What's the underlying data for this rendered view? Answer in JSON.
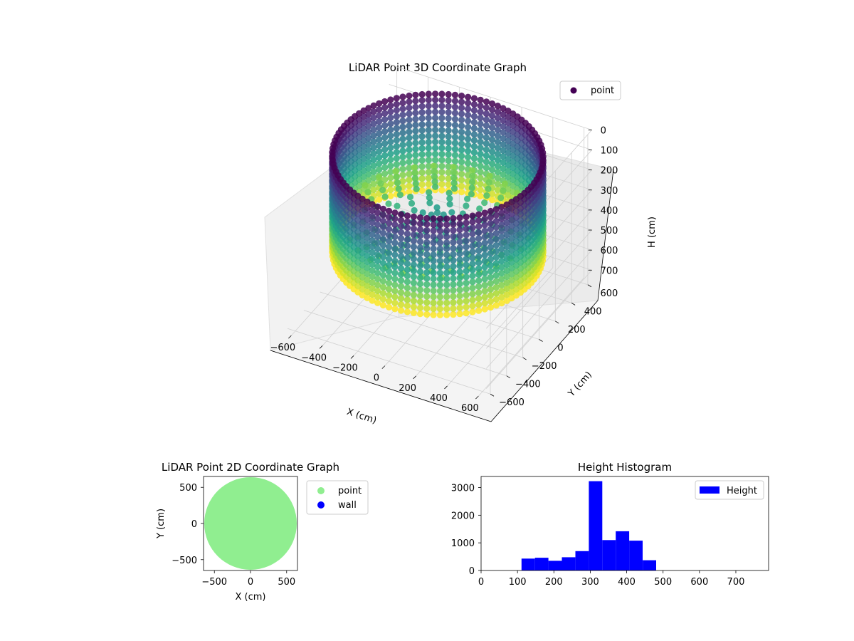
{
  "colors": {
    "wall_3d": "#440154",
    "viridis_mid": "#21918c",
    "viridis_high": "#fde725",
    "point_2d": "#90ee90",
    "wall_2d": "#0000ff",
    "histogram": "#0000ff"
  },
  "chart_data": [
    {
      "type": "scatter",
      "title": "LiDAR Point 3D Coordinate Graph",
      "xlabel": "X (cm)",
      "ylabel": "Y (cm)",
      "zlabel": "H (cm)",
      "x_ticks": [
        "−600",
        "−400",
        "−200",
        "0",
        "200",
        "400",
        "600"
      ],
      "y_ticks": [
        "−600",
        "−400",
        "−200",
        "0",
        "200",
        "400",
        "600"
      ],
      "z_ticks": [
        "0",
        "100",
        "200",
        "300",
        "400",
        "500",
        "600",
        "700"
      ],
      "xlim": [
        -650,
        650
      ],
      "ylim": [
        -650,
        650
      ],
      "zlim": [
        0,
        750
      ],
      "z_inverted": true,
      "legend": [
        "point"
      ],
      "legend_position": "upper right",
      "colormap": "viridis",
      "wall_radius": 600,
      "wall_height_range": [
        0,
        480
      ],
      "floor_height_range": [
        300,
        330
      ],
      "grid": true
    },
    {
      "type": "scatter",
      "title": "LiDAR Point 2D Coordinate Graph",
      "xlabel": "X (cm)",
      "ylabel": "Y (cm)",
      "x_ticks": [
        "−500",
        "0",
        "500"
      ],
      "y_ticks": [
        "500",
        "0",
        "−500"
      ],
      "xlim": [
        -650,
        650
      ],
      "ylim": [
        -650,
        650
      ],
      "legend": [
        "point",
        "wall"
      ],
      "legend_position": "outside right",
      "point_region_radius": 640,
      "grid": false
    },
    {
      "type": "bar",
      "title": "Height Histogram",
      "series": [
        {
          "name": "Height"
        }
      ],
      "bin_edges": [
        0,
        37,
        74,
        111,
        148,
        185,
        222,
        259,
        296,
        333,
        370,
        407,
        444,
        481,
        518,
        555,
        592,
        629,
        666,
        703,
        740,
        777
      ],
      "counts": [
        0,
        0,
        0,
        430,
        460,
        350,
        480,
        700,
        3230,
        1100,
        1420,
        1080,
        370,
        0,
        0,
        0,
        0,
        0,
        0,
        0,
        0
      ],
      "x_ticks": [
        "0",
        "100",
        "200",
        "300",
        "400",
        "500",
        "600",
        "700"
      ],
      "y_ticks": [
        "0",
        "1000",
        "2000",
        "3000"
      ],
      "xlim": [
        0,
        790
      ],
      "ylim": [
        0,
        3400
      ],
      "legend": [
        "Height"
      ],
      "legend_position": "upper right",
      "grid": false
    }
  ]
}
